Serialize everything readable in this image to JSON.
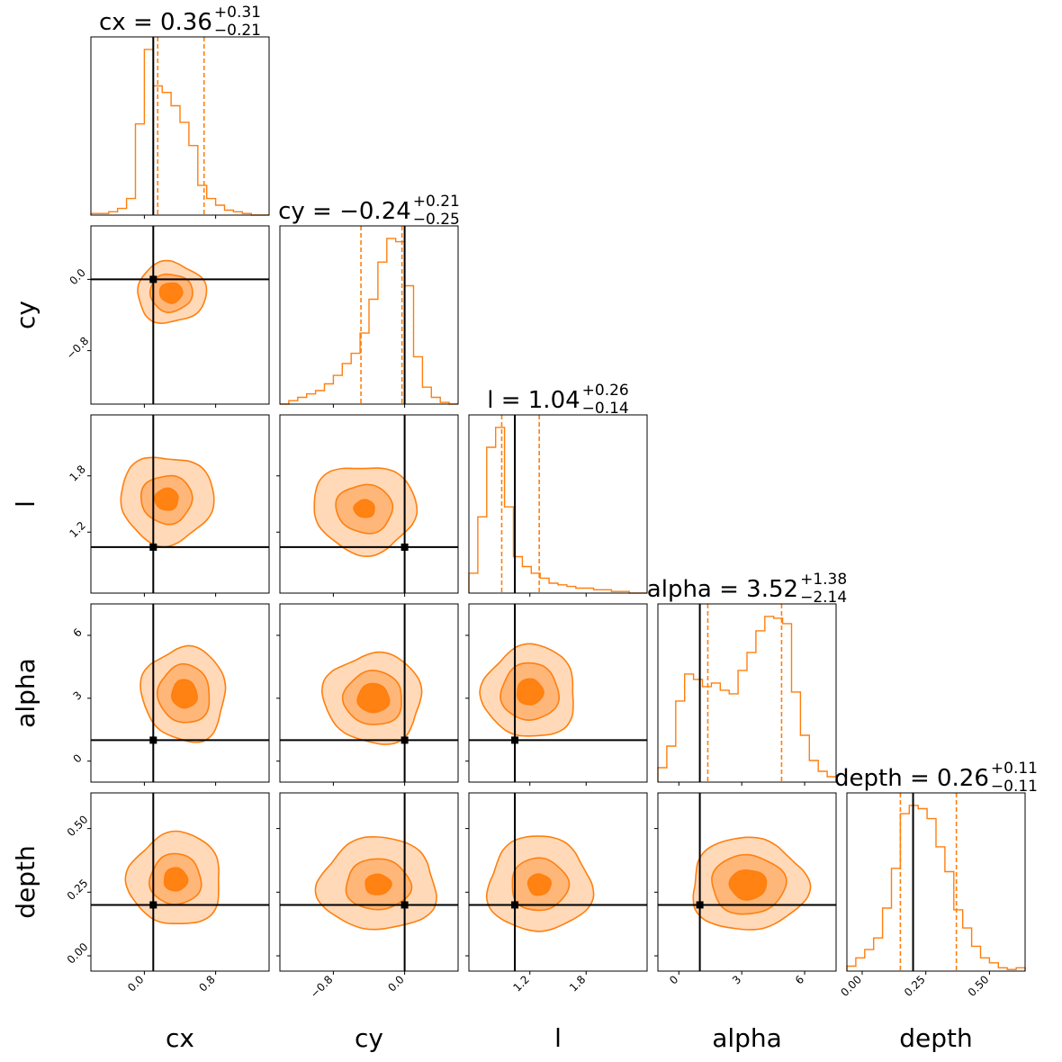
{
  "chart_data": {
    "type": "corner",
    "parameters": [
      "cx",
      "cy",
      "l",
      "alpha",
      "depth"
    ],
    "axis_labels": [
      "cx",
      "cy",
      "l",
      "alpha",
      "depth"
    ],
    "ranges": {
      "cx": [
        -0.6,
        1.4
      ],
      "cy": [
        -1.4,
        0.6
      ],
      "l": [
        0.55,
        2.45
      ],
      "alpha": [
        -1.0,
        7.5
      ],
      "depth": [
        -0.06,
        0.64
      ]
    },
    "truths": {
      "cx": 0.1,
      "cy": 0.0,
      "l": 1.04,
      "alpha": 1.0,
      "depth": 0.2
    },
    "quantiles": {
      "cx": [
        0.15,
        0.67
      ],
      "cy": [
        -0.49,
        -0.03
      ],
      "l": [
        0.9,
        1.3
      ],
      "alpha": [
        1.38,
        4.9
      ],
      "depth": [
        0.15,
        0.37
      ]
    },
    "titles": [
      {
        "param": "cx",
        "text": "cx = 0.36",
        "sup": "+0.31",
        "sub": "−0.21"
      },
      {
        "param": "cy",
        "text": "cy = −0.24",
        "sup": "+0.21",
        "sub": "−0.25"
      },
      {
        "param": "l",
        "text": "l = 1.04",
        "sup": "+0.26",
        "sub": "−0.14"
      },
      {
        "param": "alpha",
        "text": "alpha = 3.52",
        "sup": "+1.38",
        "sub": "−2.14"
      },
      {
        "param": "depth",
        "text": "depth = 0.26",
        "sup": "+0.11",
        "sub": "−0.11"
      }
    ],
    "ticks": {
      "cx": {
        "values": [
          0.0,
          0.8
        ],
        "labels": [
          "0.0",
          "0.8"
        ]
      },
      "cy": {
        "values": [
          -0.8,
          0.0
        ],
        "labels": [
          "−0.8",
          "0.0"
        ]
      },
      "l": {
        "values": [
          1.2,
          1.8
        ],
        "labels": [
          "1.2",
          "1.8"
        ]
      },
      "alpha": {
        "values": [
          0,
          3,
          6
        ],
        "labels": [
          "0",
          "3",
          "6"
        ]
      },
      "depth": {
        "values": [
          0.0,
          0.25,
          0.5
        ],
        "labels": [
          "0.00",
          "0.25",
          "0.50"
        ]
      }
    },
    "histograms": {
      "cx": [
        0.01,
        0.01,
        0.02,
        0.04,
        0.1,
        0.55,
        1.0,
        0.78,
        0.74,
        0.66,
        0.56,
        0.42,
        0.18,
        0.1,
        0.06,
        0.03,
        0.02,
        0.01,
        0.0,
        0.0
      ],
      "cy": [
        0.0,
        0.02,
        0.04,
        0.06,
        0.08,
        0.12,
        0.17,
        0.24,
        0.3,
        0.42,
        0.62,
        0.84,
        0.98,
        0.96,
        0.7,
        0.28,
        0.1,
        0.04,
        0.01,
        0.0
      ],
      "l": [
        0.12,
        0.46,
        0.88,
        1.0,
        0.52,
        0.22,
        0.16,
        0.12,
        0.09,
        0.06,
        0.05,
        0.04,
        0.03,
        0.03,
        0.02,
        0.02,
        0.01,
        0.01,
        0.0,
        0.0
      ],
      "alpha": [
        0.08,
        0.2,
        0.45,
        0.6,
        0.57,
        0.53,
        0.55,
        0.51,
        0.49,
        0.62,
        0.72,
        0.84,
        0.92,
        0.91,
        0.88,
        0.5,
        0.26,
        0.12,
        0.06,
        0.03
      ],
      "depth": [
        0.03,
        0.08,
        0.13,
        0.2,
        0.38,
        0.62,
        0.95,
        1.0,
        0.98,
        0.92,
        0.75,
        0.6,
        0.37,
        0.26,
        0.15,
        0.08,
        0.05,
        0.02,
        0.01,
        0.02
      ]
    },
    "contour_levels": [
      "outer",
      "middle",
      "inner"
    ],
    "colors": {
      "line": "#ff7f0e",
      "fill_outer": "#ffd9b8",
      "fill_middle": "#ffb679",
      "fill_inner": "#ff8212",
      "truth": "#000000"
    }
  }
}
